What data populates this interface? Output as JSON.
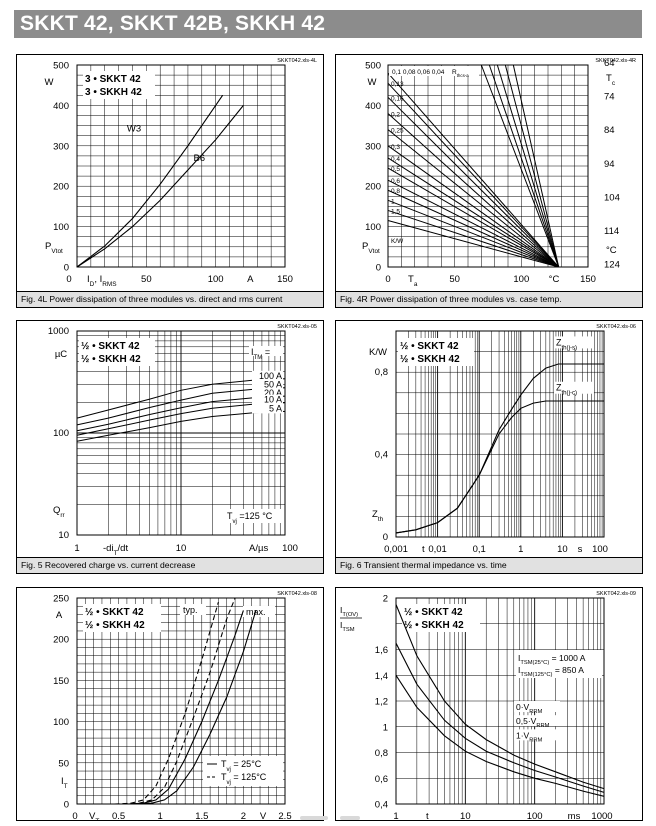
{
  "banner": {
    "title": "SKKT 42, SKKT 42B, SKKH 42"
  },
  "chart_data": [
    {
      "id": "4L",
      "type": "line",
      "stamp": "SKKT042.xls-4L",
      "caption": "Fig. 4L Power dissipation of three modules vs. direct and rms current",
      "title_lines": [
        "3 • SKKT 42",
        "3 • SKKH 42"
      ],
      "xlabel_parts": [
        "I",
        "D",
        ", I",
        "RMS"
      ],
      "xunit": "A",
      "ylabel_parts": [
        "P",
        "Vtot"
      ],
      "yunit": "W",
      "xlim": [
        0,
        150
      ],
      "ylim": [
        0,
        500
      ],
      "xticks": [
        "0",
        "50",
        "100",
        "150"
      ],
      "yticks": [
        "0",
        "100",
        "200",
        "300",
        "400",
        "500"
      ],
      "series": [
        {
          "name": "W3",
          "x": [
            0,
            20,
            40,
            60,
            80,
            105
          ],
          "y": [
            0,
            52,
            120,
            205,
            300,
            425
          ]
        },
        {
          "name": "B6",
          "x": [
            0,
            20,
            40,
            60,
            80,
            100,
            120
          ],
          "y": [
            0,
            45,
            100,
            165,
            240,
            315,
            400
          ]
        }
      ]
    },
    {
      "id": "4R",
      "type": "line",
      "stamp": "SKKT042.xls-4R",
      "caption": "Fig. 4R Power dissipation of three modules vs. case temp.",
      "xlabel_parts": [
        "T",
        "a"
      ],
      "xunit": "°C",
      "ylabel_parts": [
        "P",
        "Vtot"
      ],
      "yunit": "W",
      "y2label_parts": [
        "T",
        "c"
      ],
      "y2unit": "°C",
      "xlim": [
        0,
        150
      ],
      "ylim": [
        0,
        500
      ],
      "xticks": [
        "0",
        "50",
        "100",
        "150"
      ],
      "yticks": [
        "0",
        "100",
        "200",
        "300",
        "400",
        "500"
      ],
      "y2ticks": [
        "64",
        "74",
        "84",
        "94",
        "104",
        "114",
        "124"
      ],
      "rth_header": [
        "0,1",
        "0,08",
        "0,06",
        "0,04",
        "R",
        "thcs-a"
      ],
      "rth_left": [
        "0,13",
        "0,16",
        "0,2",
        "0,25",
        "0,3",
        "0,4",
        "0,5",
        "0,6",
        "0,8",
        "1",
        "1,5",
        "K/W"
      ],
      "lines_y": [
        480,
        455,
        420,
        380,
        340,
        300,
        270,
        245,
        215,
        190,
        165,
        140,
        115
      ],
      "converge_x": 128
    },
    {
      "id": "5",
      "type": "line",
      "stamp": "SKKT042.xls-05",
      "caption": "Fig. 5 Recovered charge vs. current decrease",
      "title_lines": [
        "½ • SKKT 42",
        "½ • SKKH 42"
      ],
      "xlabel_parts": [
        "-di",
        "T",
        "/dt"
      ],
      "xunit": "A/µs",
      "ylabel_parts": [
        "Q",
        "rr"
      ],
      "yunit": "µC",
      "cond_parts": [
        "T",
        "vj",
        " =125 °C"
      ],
      "legend_header": [
        "I",
        "TM",
        " ="
      ],
      "xscale": "log",
      "yscale": "log",
      "xlim": [
        1,
        100
      ],
      "ylim": [
        10,
        1000
      ],
      "xticks": [
        "1",
        "10",
        "100"
      ],
      "yticks": [
        "10",
        "100",
        "1000"
      ],
      "series": [
        {
          "name": "100 A",
          "x": [
            1,
            2,
            5,
            10,
            20,
            50,
            100
          ],
          "y": [
            140,
            168,
            215,
            262,
            300,
            330,
            340
          ]
        },
        {
          "name": "50 A",
          "x": [
            1,
            2,
            5,
            10,
            20,
            50,
            100
          ],
          "y": [
            120,
            140,
            178,
            210,
            245,
            268,
            278
          ]
        },
        {
          "name": "20 A",
          "x": [
            1,
            2,
            5,
            10,
            20,
            50,
            100
          ],
          "y": [
            105,
            122,
            152,
            177,
            203,
            222,
            230
          ]
        },
        {
          "name": "10 A",
          "x": [
            1,
            2,
            5,
            10,
            20,
            50,
            100
          ],
          "y": [
            95,
            110,
            134,
            155,
            175,
            192,
            198
          ]
        },
        {
          "name": "5 A",
          "x": [
            1,
            2,
            5,
            10,
            20,
            50,
            100
          ],
          "y": [
            83,
            95,
            113,
            130,
            145,
            158,
            163
          ]
        }
      ]
    },
    {
      "id": "6",
      "type": "line",
      "stamp": "SKKT042.xls-06",
      "caption": "Fig. 6 Transient thermal impedance vs. time",
      "title_lines": [
        "½ • SKKT 42",
        "½ • SKKH 42"
      ],
      "xlabel_parts": [
        "t"
      ],
      "xunit": "s",
      "ylabel_parts": [
        "Z",
        "th"
      ],
      "yunit": "K/W",
      "xscale": "log",
      "xlim": [
        0.001,
        100
      ],
      "ylim": [
        0,
        1
      ],
      "xticks": [
        "0,001",
        "0,01",
        "0,1",
        "1",
        "10",
        "100"
      ],
      "yticks": [
        "0",
        "0,4",
        "0,8"
      ],
      "series": [
        {
          "name": "Z(th(j-s))",
          "label_parts": [
            "Z",
            "th(j-s)"
          ],
          "x": [
            0.001,
            0.003,
            0.01,
            0.03,
            0.1,
            0.3,
            0.6,
            1,
            2,
            4,
            8,
            20,
            100
          ],
          "y": [
            0.02,
            0.035,
            0.07,
            0.14,
            0.3,
            0.52,
            0.62,
            0.69,
            0.77,
            0.82,
            0.84,
            0.84,
            0.84
          ]
        },
        {
          "name": "Z(th(j-c))",
          "label_parts": [
            "Z",
            "th(j-c)"
          ],
          "x": [
            0.001,
            0.003,
            0.01,
            0.03,
            0.1,
            0.3,
            0.6,
            1,
            2,
            4,
            100
          ],
          "y": [
            0.02,
            0.035,
            0.07,
            0.14,
            0.3,
            0.5,
            0.58,
            0.625,
            0.65,
            0.66,
            0.66
          ]
        }
      ]
    },
    {
      "id": "8",
      "type": "line",
      "stamp": "SKKT042.xls-08",
      "caption": "",
      "title_lines": [
        "½ • SKKT 42",
        "½ • SKKH 42"
      ],
      "xlabel_parts": [
        "V",
        "T"
      ],
      "xunit": "V",
      "ylabel_parts": [
        "I",
        "T"
      ],
      "yunit": "A",
      "typ_label": "typ.",
      "max_label": "max.",
      "xlim": [
        0,
        2.5
      ],
      "ylim": [
        0,
        250
      ],
      "xticks": [
        "0",
        "0.5",
        "1",
        "1.5",
        "2",
        "2.5"
      ],
      "yticks": [
        "0",
        "50",
        "100",
        "150",
        "200",
        "250"
      ],
      "series": [
        {
          "name": "Tvj = 25 °C (typ.)",
          "style": "solid",
          "label_parts": [
            "T",
            "vj",
            " =  25°C"
          ],
          "x": [
            0.6,
            0.8,
            0.95,
            1.1,
            1.3,
            1.5,
            1.7,
            1.9,
            2.0
          ],
          "y": [
            0,
            1,
            5,
            18,
            55,
            100,
            150,
            205,
            235
          ]
        },
        {
          "name": "Tvj = 125 °C (typ.)",
          "style": "dashed",
          "label_parts": [
            "T",
            "vj",
            " = 125°C"
          ],
          "x": [
            0.45,
            0.65,
            0.8,
            0.95,
            1.1,
            1.3,
            1.5,
            1.7
          ],
          "y": [
            0,
            1,
            5,
            22,
            55,
            110,
            175,
            245
          ]
        },
        {
          "name": "Tvj = 25 °C (max.)",
          "style": "solid",
          "x": [
            0.7,
            0.9,
            1.05,
            1.2,
            1.4,
            1.6,
            1.8,
            2.0,
            2.15
          ],
          "y": [
            0,
            1,
            5,
            16,
            45,
            85,
            130,
            185,
            235
          ]
        },
        {
          "name": "Tvj = 125 °C (max.)",
          "style": "dashed",
          "x": [
            0.55,
            0.75,
            0.9,
            1.05,
            1.2,
            1.4,
            1.6,
            1.8,
            1.9
          ],
          "y": [
            0,
            1,
            5,
            20,
            52,
            105,
            160,
            225,
            250
          ]
        }
      ]
    },
    {
      "id": "9",
      "type": "line",
      "stamp": "SKKT042.xls-09",
      "caption": "",
      "title_lines": [
        "½ • SKKT 42",
        "½ • SKKH 42"
      ],
      "xlabel_parts": [
        "t"
      ],
      "xunit": "ms",
      "ylabel_num_parts": [
        "I",
        "T(OV)"
      ],
      "ylabel_den_parts": [
        "I",
        "TSM"
      ],
      "itsm_lines": [
        [
          "I",
          "TSM(25°C)",
          " = 1000 A"
        ],
        [
          "I",
          "TSM(125°C)",
          " =  850 A"
        ]
      ],
      "xscale": "log",
      "xlim": [
        1,
        1000
      ],
      "ylim": [
        0.4,
        2
      ],
      "xticks": [
        "1",
        "10",
        "100",
        "1000"
      ],
      "yticks": [
        "0,4",
        "0,6",
        "0,8",
        "1",
        "1,2",
        "1,4",
        "1,6",
        "2"
      ],
      "series": [
        {
          "name": "0·VRRM",
          "label_parts": [
            "0·V",
            "RRM"
          ],
          "x": [
            1,
            2,
            5,
            10,
            20,
            50,
            100,
            200,
            500,
            1000
          ],
          "y": [
            1.95,
            1.55,
            1.2,
            1.02,
            0.9,
            0.78,
            0.71,
            0.65,
            0.57,
            0.52
          ]
        },
        {
          "name": "0,5·VRRM",
          "label_parts": [
            "0,5·V",
            "RRM"
          ],
          "x": [
            1,
            2,
            5,
            10,
            20,
            50,
            100,
            200,
            500,
            1000
          ],
          "y": [
            1.65,
            1.33,
            1.05,
            0.91,
            0.81,
            0.72,
            0.66,
            0.61,
            0.54,
            0.49
          ]
        },
        {
          "name": "1·VRRM",
          "label_parts": [
            "1·V",
            "RRM"
          ],
          "x": [
            1,
            2,
            5,
            10,
            20,
            50,
            100,
            200,
            500,
            1000
          ],
          "y": [
            1.4,
            1.15,
            0.93,
            0.81,
            0.73,
            0.65,
            0.6,
            0.56,
            0.5,
            0.46
          ]
        }
      ]
    }
  ]
}
